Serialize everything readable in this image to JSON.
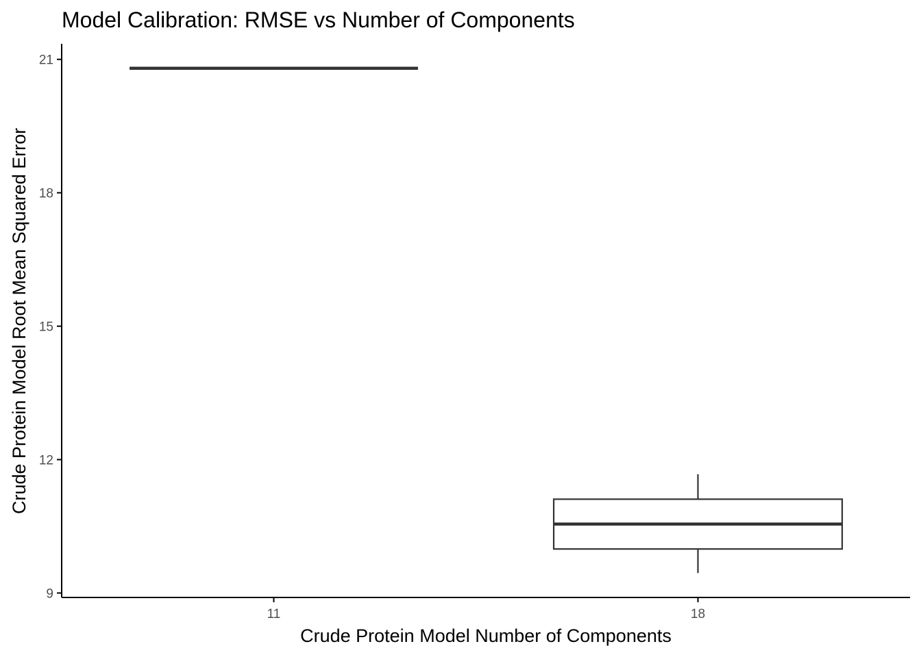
{
  "chart_data": {
    "type": "boxplot",
    "title": "Model Calibration: RMSE vs Number of Components",
    "xlabel": "Crude Protein Model Number of Components",
    "ylabel": "Crude Protein Model Root Mean Squared Error",
    "categories": [
      "11",
      "18"
    ],
    "ylim": [
      8.9,
      21.35
    ],
    "yticks": [
      9,
      12,
      15,
      18,
      21
    ],
    "ytick_labels": [
      "9",
      "12",
      "15",
      "18",
      "21"
    ],
    "grid": false,
    "legend": "none",
    "boxes": [
      {
        "category": "11",
        "min": 20.8,
        "q1": 20.8,
        "median": 20.8,
        "q3": 20.8,
        "max": 20.8
      },
      {
        "category": "18",
        "min": 9.45,
        "q1": 9.99,
        "median": 10.55,
        "q3": 11.11,
        "max": 11.67
      }
    ],
    "colors": {
      "box_stroke": "#333333",
      "axis": "#000000",
      "tick_text": "#4d4d4d"
    }
  }
}
